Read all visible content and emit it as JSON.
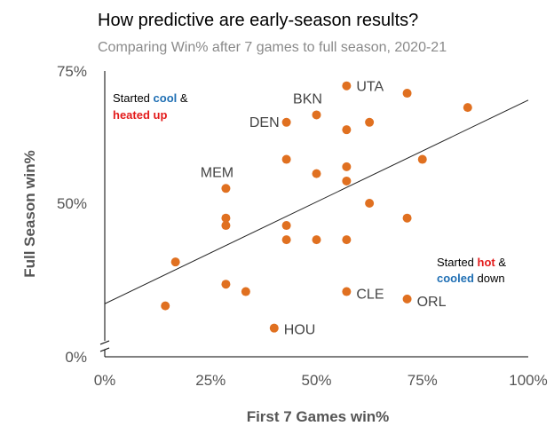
{
  "chart_data": {
    "type": "scatter",
    "title": "How predictive are early-season results?",
    "subtitle": "Comparing Win% after 7 games to full season, 2020-21",
    "xlabel": "First 7 Games win%",
    "ylabel": "Full Season win%",
    "xlim": [
      0,
      100
    ],
    "ylim": [
      0,
      75
    ],
    "x_ticks": [
      {
        "value": 0,
        "label": "0%"
      },
      {
        "value": 25,
        "label": "25%"
      },
      {
        "value": 50,
        "label": "50%"
      },
      {
        "value": 75,
        "label": "75%"
      },
      {
        "value": 100,
        "label": "100%"
      }
    ],
    "y_ticks": [
      {
        "value": 0,
        "label": "0%"
      },
      {
        "value": 50,
        "label": "50%"
      },
      {
        "value": 75,
        "label": "75%"
      }
    ],
    "grid": false,
    "y_axis_break": true,
    "point_color": "#e07020",
    "trend_line": {
      "x": [
        0,
        100
      ],
      "y": [
        31,
        69.5
      ]
    },
    "points": [
      {
        "x": 57.1,
        "y": 72.2,
        "label": "UTA"
      },
      {
        "x": 71.4,
        "y": 70.8,
        "label": ""
      },
      {
        "x": 85.7,
        "y": 68.1,
        "label": ""
      },
      {
        "x": 50.0,
        "y": 66.7,
        "label": "BKN"
      },
      {
        "x": 42.9,
        "y": 65.3,
        "label": "DEN"
      },
      {
        "x": 62.5,
        "y": 65.3,
        "label": ""
      },
      {
        "x": 57.1,
        "y": 63.9,
        "label": ""
      },
      {
        "x": 42.9,
        "y": 58.3,
        "label": ""
      },
      {
        "x": 75.0,
        "y": 58.3,
        "label": ""
      },
      {
        "x": 57.1,
        "y": 56.9,
        "label": ""
      },
      {
        "x": 50.0,
        "y": 55.6,
        "label": ""
      },
      {
        "x": 57.1,
        "y": 54.2,
        "label": ""
      },
      {
        "x": 28.6,
        "y": 52.8,
        "label": "MEM"
      },
      {
        "x": 62.5,
        "y": 50.0,
        "label": ""
      },
      {
        "x": 28.6,
        "y": 47.2,
        "label": ""
      },
      {
        "x": 71.4,
        "y": 47.2,
        "label": ""
      },
      {
        "x": 28.6,
        "y": 45.8,
        "label": ""
      },
      {
        "x": 42.9,
        "y": 45.8,
        "label": ""
      },
      {
        "x": 42.9,
        "y": 43.1,
        "label": ""
      },
      {
        "x": 50.0,
        "y": 43.1,
        "label": ""
      },
      {
        "x": 57.1,
        "y": 43.1,
        "label": ""
      },
      {
        "x": 16.7,
        "y": 38.9,
        "label": ""
      },
      {
        "x": 28.6,
        "y": 34.7,
        "label": ""
      },
      {
        "x": 33.3,
        "y": 33.3,
        "label": ""
      },
      {
        "x": 57.1,
        "y": 33.3,
        "label": "CLE"
      },
      {
        "x": 71.4,
        "y": 31.9,
        "label": "ORL"
      },
      {
        "x": 14.3,
        "y": 30.6,
        "label": ""
      },
      {
        "x": 40.0,
        "y": 26.4,
        "label": "HOU"
      }
    ],
    "annotations": {
      "top_left": {
        "line1_pre": "Started ",
        "line1_em": "cool",
        "line1_post": " &",
        "line2_em": "heated up"
      },
      "bottom_right": {
        "line1_pre": "Started ",
        "line1_em": "hot",
        "line1_post": " &",
        "line2_em": "cooled",
        "line2_post": " down"
      }
    }
  }
}
